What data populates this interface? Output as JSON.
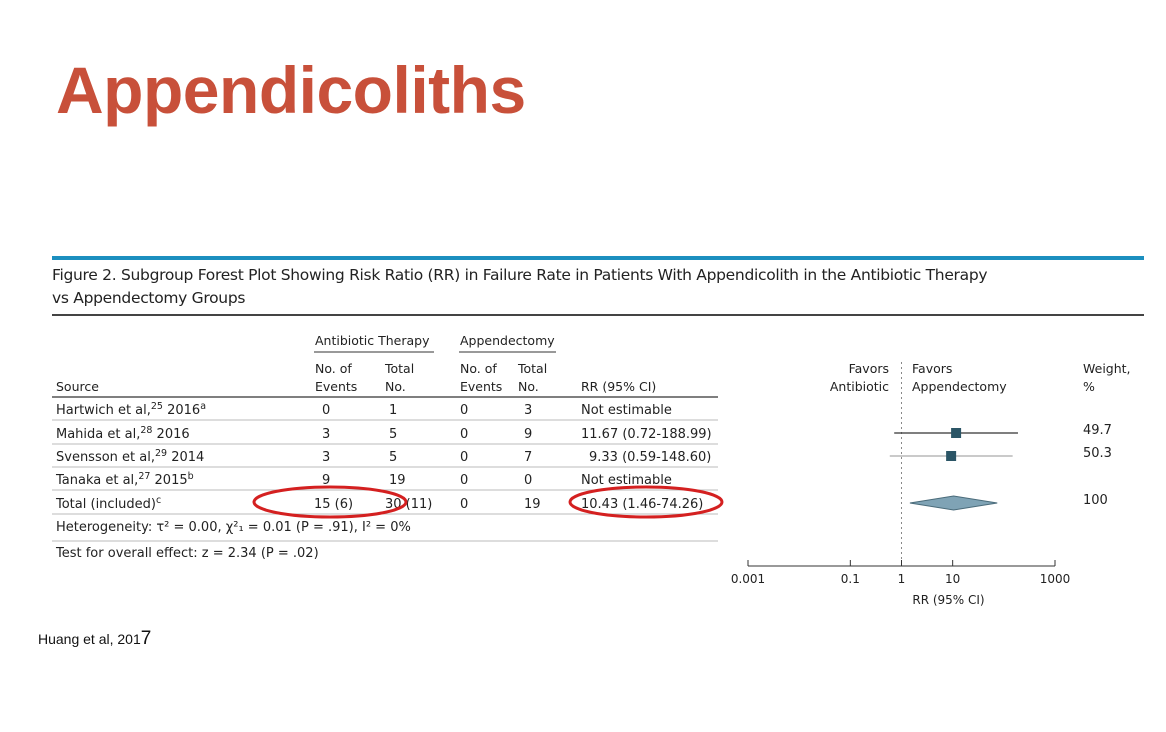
{
  "title": "Appendicoliths",
  "figure": {
    "caption_line1": "Figure 2. Subgroup Forest Plot Showing Risk Ratio (RR) in Failure Rate in Patients With Appendicolith in the Antibiotic Therapy",
    "caption_line2": "vs Appendectomy Groups"
  },
  "citation": {
    "text": "Huang et al, 201",
    "suffix": "7"
  },
  "table": {
    "group_antibiotic": "Antibiotic Therapy",
    "group_appendectomy": "Appendectomy",
    "col_source": "Source",
    "col_events_l1": "No. of",
    "col_events_l2": "Events",
    "col_total_l1": "Total",
    "col_total_l2": "No.",
    "col_rr": "RR (95% CI)",
    "favors_left_l1": "Favors",
    "favors_left_l2": "Antibiotic",
    "favors_right_l1": "Favors",
    "favors_right_l2": "Appendectomy",
    "weight_l1": "Weight,",
    "weight_l2": "%",
    "rows": [
      {
        "source": "Hartwich et al,",
        "ref": "25",
        "year": " 2016",
        "mark": "a",
        "ab_events": "0",
        "ab_total": "1",
        "ap_events": "0",
        "ap_total": "3",
        "rr": "Not estimable",
        "weight": ""
      },
      {
        "source": "Mahida et al,",
        "ref": "28",
        "year": " 2016",
        "mark": "",
        "ab_events": "3",
        "ab_total": "5",
        "ap_events": "0",
        "ap_total": "9",
        "rr": "11.67 (0.72-188.99)",
        "weight": "49.7"
      },
      {
        "source": "Svensson et al,",
        "ref": "29",
        "year": " 2014",
        "mark": "",
        "ab_events": "3",
        "ab_total": "5",
        "ap_events": "0",
        "ap_total": "7",
        "rr": "9.33 (0.59-148.60)",
        "weight": "50.3"
      },
      {
        "source": "Tanaka et al,",
        "ref": "27",
        "year": " 2015",
        "mark": "b",
        "ab_events": "9",
        "ab_total": "19",
        "ap_events": "0",
        "ap_total": "0",
        "rr": "Not estimable",
        "weight": ""
      },
      {
        "source": "Total (included)",
        "ref": "",
        "year": "",
        "mark": "c",
        "ab_events": "15 (6)",
        "ab_total": "30 (11)",
        "ap_events": "0",
        "ap_total": "19",
        "rr": "10.43 (1.46-74.26)",
        "weight": "100"
      }
    ],
    "heterogeneity": "Heterogeneity: τ² = 0.00, χ²₁ = 0.01 (P = .91), I² = 0%",
    "overall_effect": "Test for overall effect: z = 2.34 (P = .02)"
  },
  "chart_data": {
    "type": "scatter",
    "subtype": "forest-plot",
    "xscale": "log",
    "xlabel": "RR (95% CI)",
    "xticks": [
      "0.001",
      "0.1",
      "1",
      "10",
      "1000"
    ],
    "xlim": [
      0.001,
      1000
    ],
    "reference_line": 1,
    "studies": [
      {
        "name": "Mahida et al, 2016",
        "rr": 11.67,
        "lo": 0.72,
        "hi": 188.99,
        "weight": 49.7
      },
      {
        "name": "Svensson et al, 2014",
        "rr": 9.33,
        "lo": 0.59,
        "hi": 148.6,
        "weight": 50.3
      }
    ],
    "pooled": {
      "rr": 10.43,
      "lo": 1.46,
      "hi": 74.26
    },
    "colors": {
      "marker": "#2b5566",
      "diamond": "#7fa3b5",
      "highlight": "#d42020"
    }
  }
}
